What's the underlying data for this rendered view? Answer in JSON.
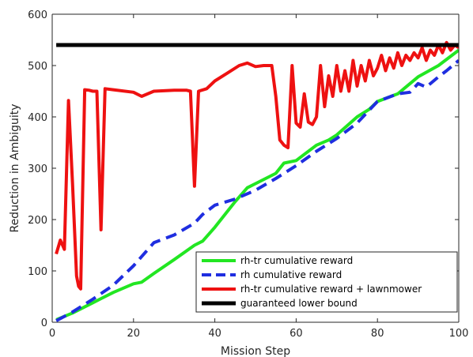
{
  "chart_data": {
    "type": "line",
    "xlabel": "Mission Step",
    "ylabel": "Reduction in Ambiguity",
    "xlim": [
      0,
      100
    ],
    "ylim": [
      0,
      600
    ],
    "x_ticks": [
      0,
      20,
      40,
      60,
      80,
      100
    ],
    "y_ticks": [
      0,
      100,
      200,
      300,
      400,
      500,
      600
    ],
    "grid": false,
    "legend_position": "bottom-right",
    "series": [
      {
        "name": "rh-tr cumulative reward",
        "color": "#22e622",
        "style": "solid",
        "x": [
          1,
          5,
          10,
          15,
          20,
          22,
          25,
          30,
          35,
          37,
          40,
          45,
          48,
          50,
          55,
          57,
          60,
          65,
          68,
          70,
          75,
          78,
          80,
          85,
          90,
          95,
          100
        ],
        "y": [
          5,
          18,
          38,
          58,
          75,
          78,
          95,
          122,
          150,
          158,
          185,
          235,
          262,
          270,
          290,
          310,
          315,
          345,
          355,
          365,
          400,
          415,
          430,
          445,
          478,
          500,
          530
        ]
      },
      {
        "name": "rh cumulative reward",
        "color": "#1f2ee0",
        "style": "dashed",
        "x": [
          1,
          5,
          10,
          15,
          20,
          25,
          30,
          35,
          37,
          40,
          45,
          50,
          55,
          60,
          65,
          70,
          75,
          80,
          85,
          88,
          90,
          92,
          95,
          97,
          100
        ],
        "y": [
          3,
          20,
          45,
          72,
          110,
          155,
          170,
          193,
          210,
          228,
          240,
          257,
          280,
          305,
          333,
          358,
          388,
          430,
          445,
          448,
          465,
          458,
          478,
          490,
          510
        ]
      },
      {
        "name": "rh-tr cumulative reward + lawnmower",
        "color": "#ee1111",
        "style": "solid",
        "x": [
          1,
          2,
          3,
          4,
          5,
          6,
          6.5,
          7,
          8,
          9,
          10,
          11,
          12,
          13,
          15,
          20,
          22,
          25,
          30,
          33,
          34,
          35,
          36,
          38,
          40,
          43,
          46,
          48,
          50,
          52,
          54,
          55,
          56,
          57,
          58,
          59,
          60,
          61,
          62,
          63,
          64,
          65,
          66,
          67,
          68,
          69,
          70,
          71,
          72,
          73,
          74,
          75,
          76,
          77,
          78,
          79,
          80,
          81,
          82,
          83,
          84,
          85,
          86,
          87,
          88,
          89,
          90,
          91,
          92,
          93,
          94,
          95,
          96,
          97,
          98,
          99,
          100
        ],
        "y": [
          133,
          160,
          142,
          432,
          270,
          90,
          70,
          65,
          453,
          452,
          450,
          450,
          180,
          455,
          453,
          448,
          440,
          450,
          452,
          452,
          450,
          265,
          450,
          455,
          470,
          485,
          500,
          505,
          498,
          500,
          500,
          440,
          355,
          345,
          340,
          500,
          388,
          380,
          445,
          390,
          385,
          400,
          500,
          420,
          480,
          440,
          500,
          450,
          490,
          450,
          510,
          460,
          500,
          470,
          510,
          480,
          495,
          520,
          490,
          515,
          495,
          525,
          500,
          520,
          510,
          525,
          515,
          535,
          510,
          530,
          520,
          540,
          525,
          545,
          530,
          540,
          535
        ]
      },
      {
        "name": "guaranteed lower bound",
        "color": "#000000",
        "style": "solid",
        "x": [
          1,
          100
        ],
        "y": [
          540,
          540
        ]
      }
    ]
  }
}
